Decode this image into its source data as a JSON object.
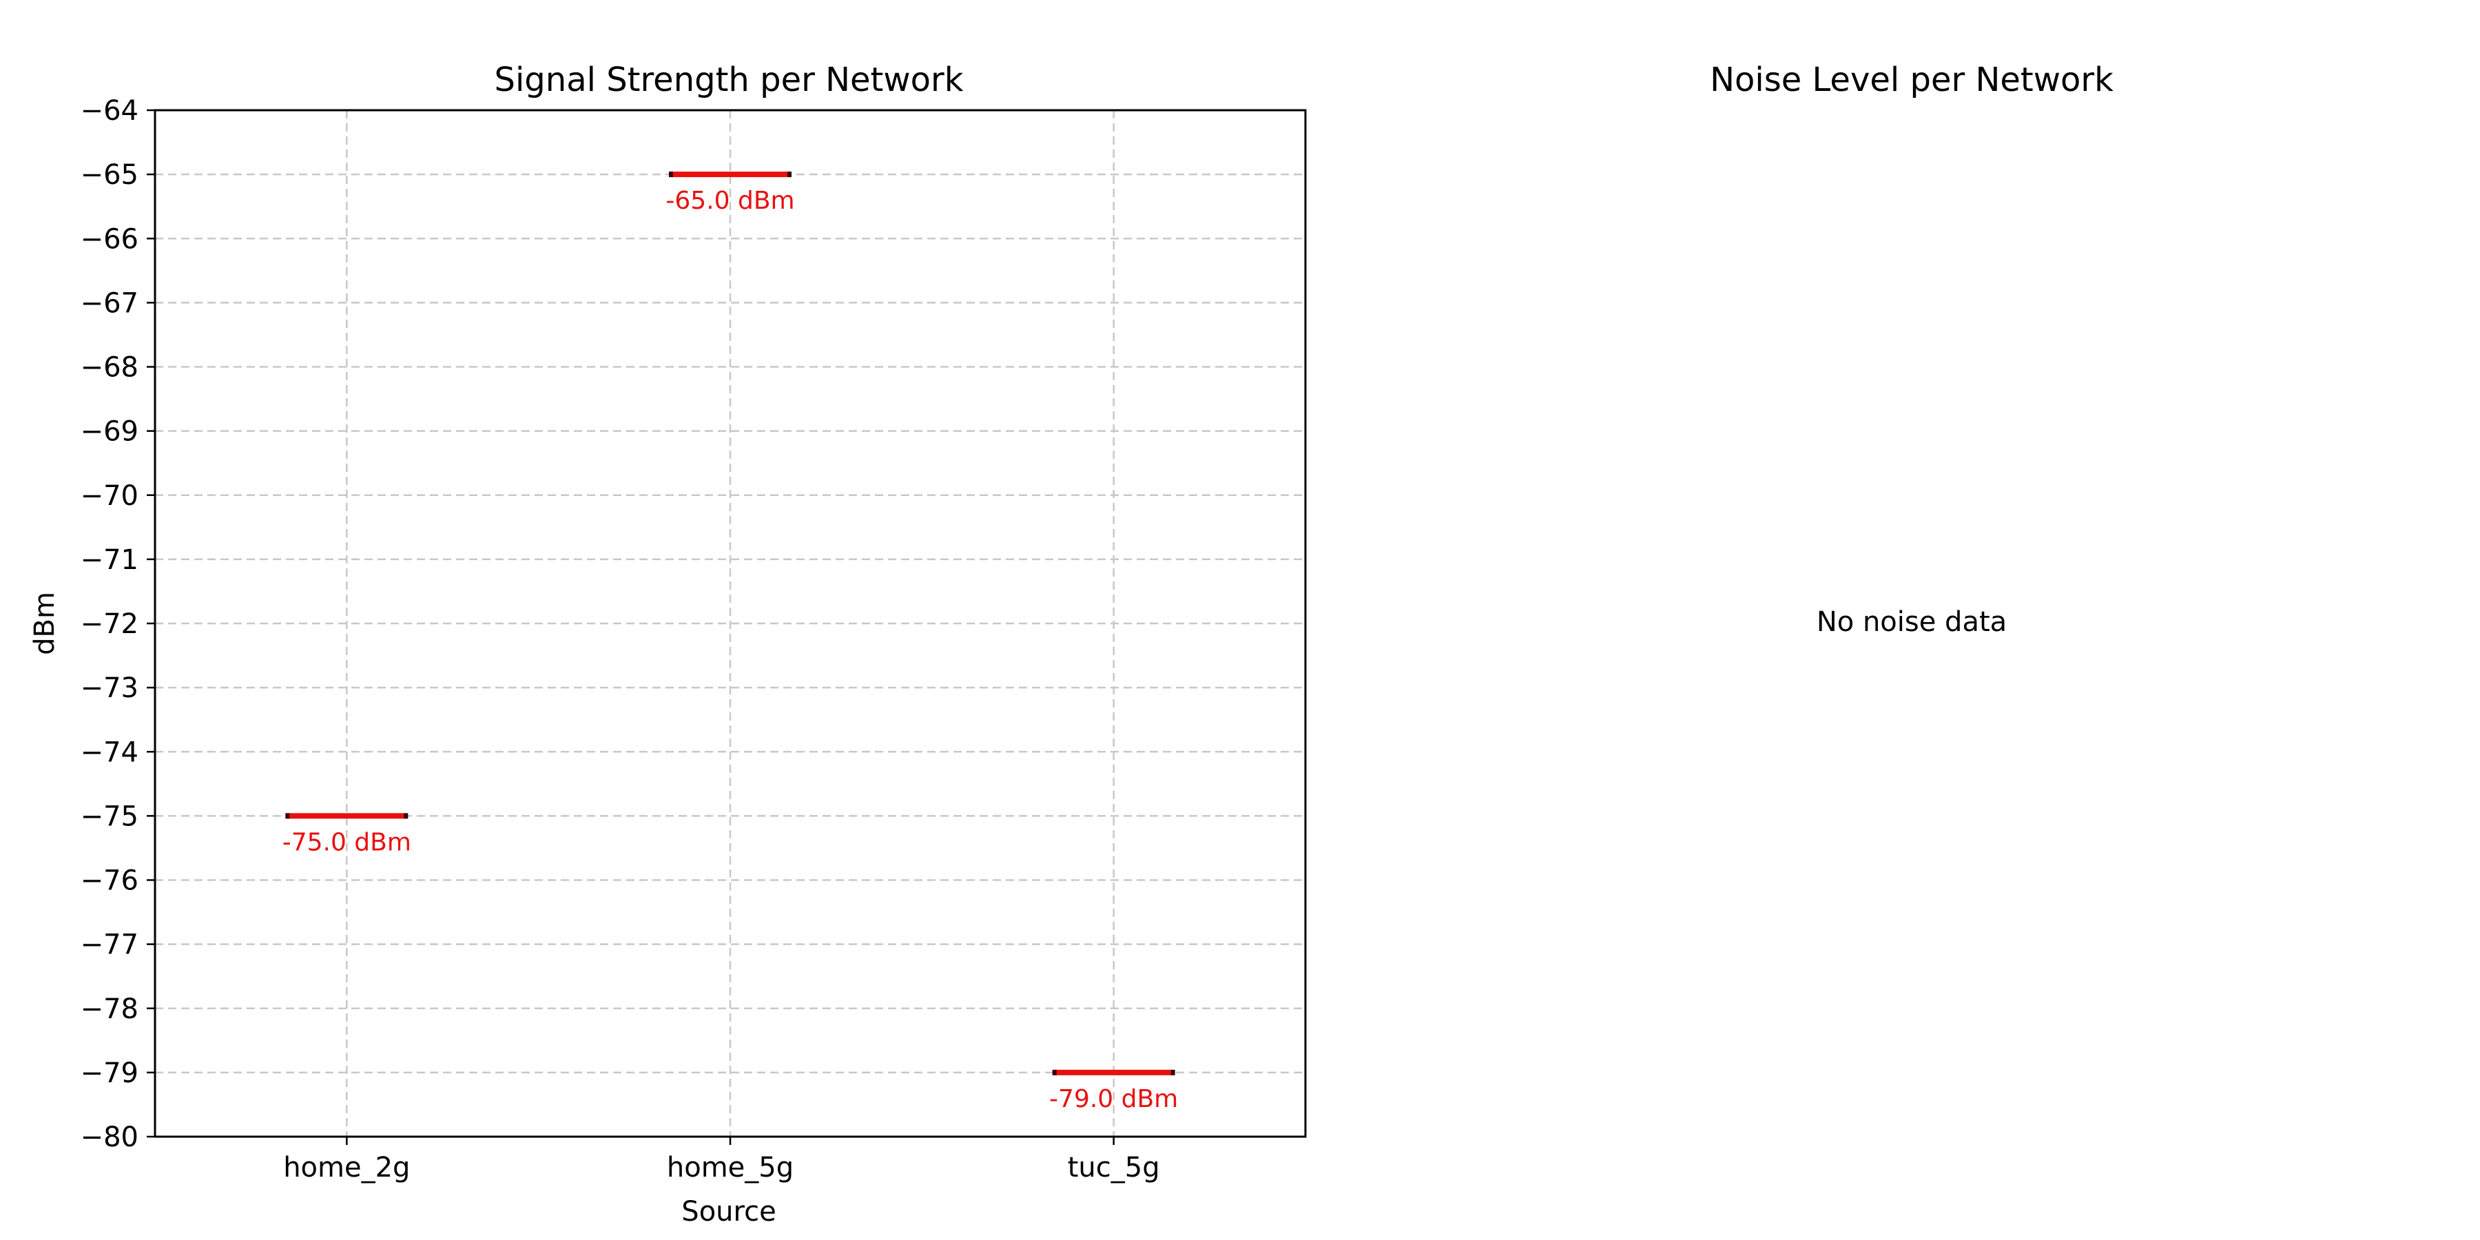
{
  "chart_data": [
    {
      "type": "scatter",
      "marker": "horizontal-line",
      "title": "Signal Strength per Network",
      "xlabel": "Source",
      "ylabel": "dBm",
      "categories": [
        "home_2g",
        "home_5g",
        "tuc_5g"
      ],
      "values": [
        -75.0,
        -65.0,
        -79.0
      ],
      "data_labels": [
        "-75.0 dBm",
        "-65.0 dBm",
        "-79.0 dBm"
      ],
      "ylim": [
        -80,
        -64
      ],
      "yticks": [
        "−80",
        "−79",
        "−78",
        "−77",
        "−76",
        "−75",
        "−74",
        "−73",
        "−72",
        "−71",
        "−70",
        "−69",
        "−68",
        "−67",
        "−66",
        "−65",
        "−64"
      ],
      "grid": true,
      "marker_color": "#e8100f",
      "label_color": "#e8100f"
    },
    {
      "type": "empty",
      "title": "Noise Level per Network",
      "message": "No noise data"
    }
  ]
}
